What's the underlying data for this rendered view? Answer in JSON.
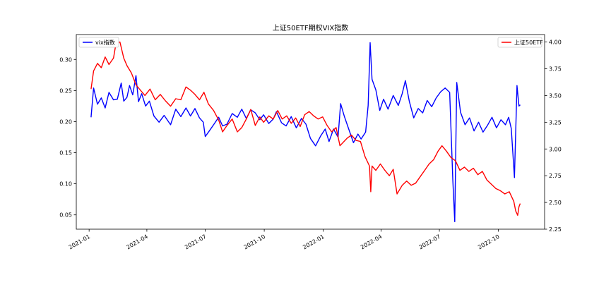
{
  "chart_data": {
    "type": "line",
    "title": "上证50ETF期权VIX指数",
    "xlabel": "",
    "ylabel_left": "",
    "ylabel_right": "",
    "x_ticks": [
      "2021-01",
      "2021-04",
      "2021-07",
      "2021-10",
      "2022-01",
      "2022-04",
      "2022-07",
      "2022-10"
    ],
    "x_tick_dates": [
      "2021-01-01",
      "2021-04-01",
      "2021-07-01",
      "2021-10-01",
      "2022-01-01",
      "2022-04-01",
      "2022-07-01",
      "2022-10-01"
    ],
    "xlim": [
      "2020-12-12",
      "2022-12-12"
    ],
    "ylim_left": [
      0.027,
      0.34
    ],
    "ylim_right": [
      2.25,
      4.07
    ],
    "y_ticks_left": [
      "0.05",
      "0.10",
      "0.15",
      "0.20",
      "0.25",
      "0.30"
    ],
    "y_ticks_right": [
      "2.25",
      "2.50",
      "2.75",
      "3.00",
      "3.25",
      "3.50",
      "3.75",
      "4.00"
    ],
    "grid": false,
    "legend_left": "top-left",
    "legend_right": "top-right",
    "series": [
      {
        "name": "vix指数",
        "axis": "left",
        "color": "#0000ff",
        "points": [
          [
            "2021-01-04",
            0.207
          ],
          [
            "2021-01-08",
            0.254
          ],
          [
            "2021-01-14",
            0.228
          ],
          [
            "2021-01-20",
            0.238
          ],
          [
            "2021-01-26",
            0.222
          ],
          [
            "2021-02-01",
            0.247
          ],
          [
            "2021-02-08",
            0.235
          ],
          [
            "2021-02-14",
            0.236
          ],
          [
            "2021-02-20",
            0.262
          ],
          [
            "2021-02-24",
            0.233
          ],
          [
            "2021-03-01",
            0.239
          ],
          [
            "2021-03-05",
            0.258
          ],
          [
            "2021-03-10",
            0.243
          ],
          [
            "2021-03-15",
            0.274
          ],
          [
            "2021-03-19",
            0.232
          ],
          [
            "2021-03-24",
            0.245
          ],
          [
            "2021-03-30",
            0.225
          ],
          [
            "2021-04-05",
            0.233
          ],
          [
            "2021-04-12",
            0.209
          ],
          [
            "2021-04-20",
            0.199
          ],
          [
            "2021-04-28",
            0.21
          ],
          [
            "2021-05-08",
            0.195
          ],
          [
            "2021-05-16",
            0.22
          ],
          [
            "2021-05-24",
            0.208
          ],
          [
            "2021-06-01",
            0.222
          ],
          [
            "2021-06-08",
            0.209
          ],
          [
            "2021-06-15",
            0.221
          ],
          [
            "2021-06-22",
            0.206
          ],
          [
            "2021-06-28",
            0.199
          ],
          [
            "2021-07-01",
            0.176
          ],
          [
            "2021-07-08",
            0.186
          ],
          [
            "2021-07-14",
            0.195
          ],
          [
            "2021-07-22",
            0.207
          ],
          [
            "2021-07-28",
            0.193
          ],
          [
            "2021-08-04",
            0.196
          ],
          [
            "2021-08-12",
            0.213
          ],
          [
            "2021-08-20",
            0.207
          ],
          [
            "2021-08-27",
            0.22
          ],
          [
            "2021-09-03",
            0.205
          ],
          [
            "2021-09-10",
            0.219
          ],
          [
            "2021-09-17",
            0.214
          ],
          [
            "2021-09-24",
            0.203
          ],
          [
            "2021-09-30",
            0.211
          ],
          [
            "2021-10-08",
            0.197
          ],
          [
            "2021-10-15",
            0.204
          ],
          [
            "2021-10-20",
            0.216
          ],
          [
            "2021-10-28",
            0.198
          ],
          [
            "2021-11-04",
            0.193
          ],
          [
            "2021-11-12",
            0.208
          ],
          [
            "2021-11-20",
            0.19
          ],
          [
            "2021-11-28",
            0.205
          ],
          [
            "2021-12-05",
            0.196
          ],
          [
            "2021-12-12",
            0.173
          ],
          [
            "2021-12-20",
            0.161
          ],
          [
            "2021-12-28",
            0.177
          ],
          [
            "2022-01-04",
            0.188
          ],
          [
            "2022-01-10",
            0.168
          ],
          [
            "2022-01-17",
            0.188
          ],
          [
            "2022-01-24",
            0.175
          ],
          [
            "2022-01-28",
            0.229
          ],
          [
            "2022-02-03",
            0.208
          ],
          [
            "2022-02-10",
            0.187
          ],
          [
            "2022-02-17",
            0.166
          ],
          [
            "2022-02-24",
            0.18
          ],
          [
            "2022-03-01",
            0.172
          ],
          [
            "2022-03-08",
            0.183
          ],
          [
            "2022-03-12",
            0.226
          ],
          [
            "2022-03-15",
            0.327
          ],
          [
            "2022-03-18",
            0.268
          ],
          [
            "2022-03-24",
            0.251
          ],
          [
            "2022-03-30",
            0.218
          ],
          [
            "2022-04-05",
            0.236
          ],
          [
            "2022-04-12",
            0.22
          ],
          [
            "2022-04-20",
            0.242
          ],
          [
            "2022-04-28",
            0.226
          ],
          [
            "2022-05-04",
            0.245
          ],
          [
            "2022-05-09",
            0.266
          ],
          [
            "2022-05-15",
            0.233
          ],
          [
            "2022-05-22",
            0.206
          ],
          [
            "2022-05-29",
            0.221
          ],
          [
            "2022-06-05",
            0.214
          ],
          [
            "2022-06-12",
            0.234
          ],
          [
            "2022-06-19",
            0.224
          ],
          [
            "2022-06-26",
            0.238
          ],
          [
            "2022-07-03",
            0.248
          ],
          [
            "2022-07-10",
            0.254
          ],
          [
            "2022-07-17",
            0.247
          ],
          [
            "2022-07-22",
            0.105
          ],
          [
            "2022-07-25",
            0.039
          ],
          [
            "2022-07-28",
            0.263
          ],
          [
            "2022-08-03",
            0.215
          ],
          [
            "2022-08-10",
            0.195
          ],
          [
            "2022-08-17",
            0.206
          ],
          [
            "2022-08-24",
            0.185
          ],
          [
            "2022-08-31",
            0.199
          ],
          [
            "2022-09-07",
            0.183
          ],
          [
            "2022-09-14",
            0.194
          ],
          [
            "2022-09-21",
            0.207
          ],
          [
            "2022-09-28",
            0.19
          ],
          [
            "2022-10-05",
            0.203
          ],
          [
            "2022-10-12",
            0.195
          ],
          [
            "2022-10-17",
            0.207
          ],
          [
            "2022-10-21",
            0.189
          ],
          [
            "2022-10-26",
            0.11
          ],
          [
            "2022-10-30",
            0.258
          ],
          [
            "2022-11-02",
            0.225
          ],
          [
            "2022-11-04",
            0.227
          ]
        ]
      },
      {
        "name": "上证50ETF",
        "axis": "right",
        "color": "#ff0000",
        "points": [
          [
            "2021-01-04",
            3.56
          ],
          [
            "2021-01-08",
            3.73
          ],
          [
            "2021-01-14",
            3.8
          ],
          [
            "2021-01-20",
            3.76
          ],
          [
            "2021-01-26",
            3.86
          ],
          [
            "2021-02-01",
            3.79
          ],
          [
            "2021-02-08",
            3.85
          ],
          [
            "2021-02-12",
            3.99
          ],
          [
            "2021-02-18",
            4.0
          ],
          [
            "2021-02-24",
            3.85
          ],
          [
            "2021-03-01",
            3.78
          ],
          [
            "2021-03-08",
            3.71
          ],
          [
            "2021-03-15",
            3.6
          ],
          [
            "2021-03-22",
            3.55
          ],
          [
            "2021-03-29",
            3.5
          ],
          [
            "2021-04-06",
            3.56
          ],
          [
            "2021-04-14",
            3.46
          ],
          [
            "2021-04-22",
            3.51
          ],
          [
            "2021-04-30",
            3.45
          ],
          [
            "2021-05-08",
            3.4
          ],
          [
            "2021-05-16",
            3.47
          ],
          [
            "2021-05-24",
            3.46
          ],
          [
            "2021-06-01",
            3.58
          ],
          [
            "2021-06-08",
            3.55
          ],
          [
            "2021-06-15",
            3.51
          ],
          [
            "2021-06-22",
            3.46
          ],
          [
            "2021-06-29",
            3.53
          ],
          [
            "2021-07-06",
            3.42
          ],
          [
            "2021-07-14",
            3.36
          ],
          [
            "2021-07-22",
            3.27
          ],
          [
            "2021-07-28",
            3.16
          ],
          [
            "2021-08-04",
            3.22
          ],
          [
            "2021-08-12",
            3.28
          ],
          [
            "2021-08-20",
            3.16
          ],
          [
            "2021-08-27",
            3.2
          ],
          [
            "2021-09-03",
            3.28
          ],
          [
            "2021-09-10",
            3.37
          ],
          [
            "2021-09-17",
            3.22
          ],
          [
            "2021-09-24",
            3.3
          ],
          [
            "2021-09-30",
            3.25
          ],
          [
            "2021-10-08",
            3.31
          ],
          [
            "2021-10-15",
            3.28
          ],
          [
            "2021-10-22",
            3.36
          ],
          [
            "2021-10-29",
            3.28
          ],
          [
            "2021-11-05",
            3.31
          ],
          [
            "2021-11-12",
            3.24
          ],
          [
            "2021-11-19",
            3.29
          ],
          [
            "2021-11-26",
            3.21
          ],
          [
            "2021-12-03",
            3.32
          ],
          [
            "2021-12-10",
            3.35
          ],
          [
            "2021-12-17",
            3.31
          ],
          [
            "2021-12-24",
            3.28
          ],
          [
            "2021-12-31",
            3.3
          ],
          [
            "2022-01-07",
            3.22
          ],
          [
            "2022-01-14",
            3.16
          ],
          [
            "2022-01-21",
            3.2
          ],
          [
            "2022-01-27",
            3.03
          ],
          [
            "2022-02-07",
            3.1
          ],
          [
            "2022-02-14",
            3.13
          ],
          [
            "2022-02-21",
            3.08
          ],
          [
            "2022-02-28",
            3.07
          ],
          [
            "2022-03-07",
            2.93
          ],
          [
            "2022-03-14",
            2.84
          ],
          [
            "2022-03-16",
            2.6
          ],
          [
            "2022-03-18",
            2.84
          ],
          [
            "2022-03-24",
            2.8
          ],
          [
            "2022-03-31",
            2.86
          ],
          [
            "2022-04-07",
            2.8
          ],
          [
            "2022-04-14",
            2.75
          ],
          [
            "2022-04-20",
            2.81
          ],
          [
            "2022-04-26",
            2.58
          ],
          [
            "2022-05-04",
            2.66
          ],
          [
            "2022-05-11",
            2.7
          ],
          [
            "2022-05-18",
            2.66
          ],
          [
            "2022-05-25",
            2.68
          ],
          [
            "2022-06-01",
            2.74
          ],
          [
            "2022-06-08",
            2.8
          ],
          [
            "2022-06-15",
            2.86
          ],
          [
            "2022-06-22",
            2.9
          ],
          [
            "2022-06-29",
            2.98
          ],
          [
            "2022-07-05",
            3.03
          ],
          [
            "2022-07-12",
            2.98
          ],
          [
            "2022-07-19",
            2.92
          ],
          [
            "2022-07-26",
            2.89
          ],
          [
            "2022-08-02",
            2.8
          ],
          [
            "2022-08-09",
            2.83
          ],
          [
            "2022-08-16",
            2.79
          ],
          [
            "2022-08-23",
            2.82
          ],
          [
            "2022-08-30",
            2.76
          ],
          [
            "2022-09-06",
            2.79
          ],
          [
            "2022-09-13",
            2.71
          ],
          [
            "2022-09-20",
            2.67
          ],
          [
            "2022-09-27",
            2.63
          ],
          [
            "2022-10-04",
            2.61
          ],
          [
            "2022-10-11",
            2.58
          ],
          [
            "2022-10-18",
            2.6
          ],
          [
            "2022-10-25",
            2.51
          ],
          [
            "2022-10-28",
            2.42
          ],
          [
            "2022-10-31",
            2.38
          ],
          [
            "2022-11-02",
            2.46
          ],
          [
            "2022-11-04",
            2.49
          ]
        ]
      }
    ]
  }
}
